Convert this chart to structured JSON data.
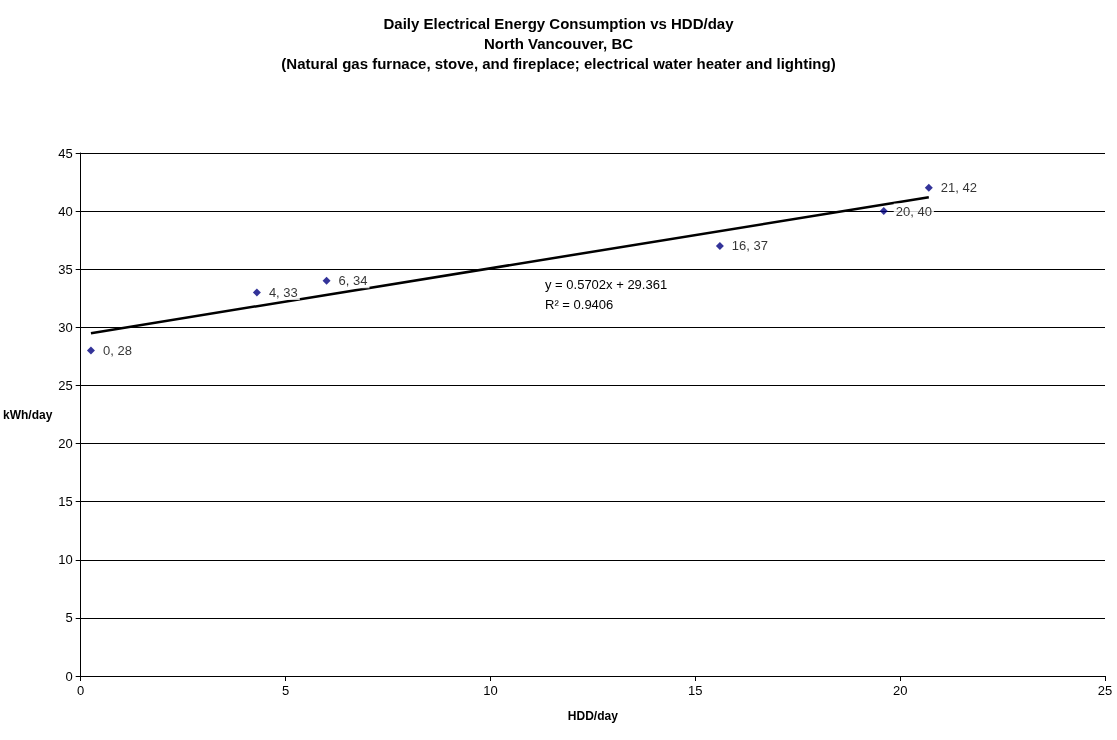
{
  "chart_data": {
    "type": "scatter",
    "title": "Daily Electrical Energy Consumption vs HDD/day\nNorth Vancouver, BC\n(Natural gas furnace, stove, and fireplace; electrical water heater and lighting)",
    "xlabel": "HDD/day",
    "ylabel": "kWh/day",
    "series": [
      {
        "color": "#000080",
        "marker": "diamond",
        "x": [
          0.25,
          4.3,
          6.0,
          15.6,
          19.6,
          20.7
        ],
        "values": [
          28,
          33,
          34,
          37,
          40,
          42
        ],
        "value_labels": [
          "0, 28",
          "4, 33",
          "6, 34",
          "16, 37",
          "20, 40",
          "21, 42"
        ]
      },
      {
        "type": "line",
        "color": "#000000",
        "marker": "none",
        "x": [
          0.25,
          20.7
        ],
        "values": [
          29.5,
          41.2
        ]
      }
    ],
    "annotations": [
      "y = 0.5702x + 29.361",
      "R² = 0.9406"
    ],
    "xlim": [
      0,
      25
    ],
    "xticks": [
      0,
      5,
      10,
      15,
      20,
      25
    ],
    "ylim": [
      0,
      45
    ],
    "yticks": [
      0,
      5,
      10,
      15,
      20,
      25,
      30,
      35,
      40,
      45
    ],
    "grid": "y"
  }
}
